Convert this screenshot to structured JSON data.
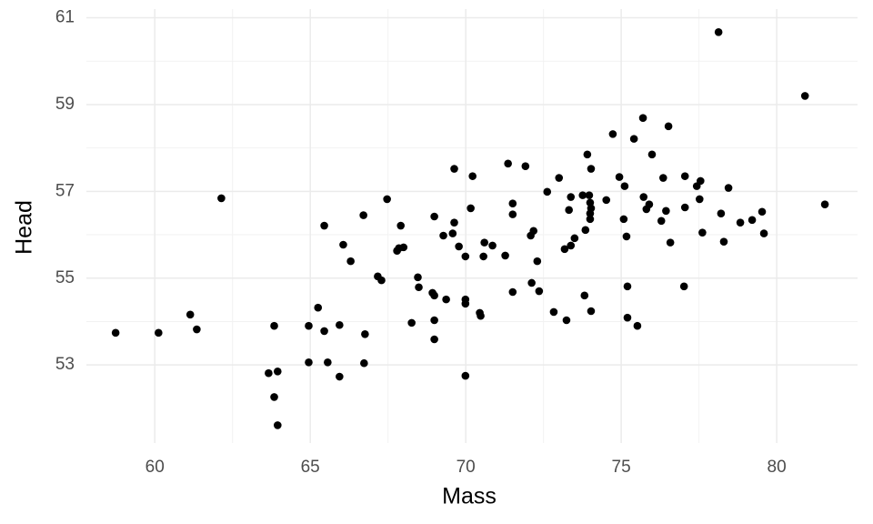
{
  "chart_data": {
    "type": "scatter",
    "x_label": "Mass",
    "y_label": "Head",
    "xlim": [
      57.8,
      82.6
    ],
    "ylim": [
      51.2,
      61.2
    ],
    "xticks": [
      60,
      65,
      70,
      75,
      80
    ],
    "yticks": [
      53,
      55,
      57,
      59,
      61
    ],
    "grid": true,
    "color": "#000000",
    "series": [
      {
        "name": "Head",
        "x": [
          58.74,
          60.12,
          61.14,
          61.35,
          62.14,
          63.66,
          63.84,
          63.84,
          63.95,
          63.95,
          64.95,
          64.95,
          65.25,
          65.45,
          65.45,
          65.56,
          65.94,
          65.94,
          66.06,
          66.3,
          66.71,
          66.76,
          66.73,
          67.17,
          67.29,
          67.47,
          67.79,
          67.85,
          67.91,
          68.0,
          68.26,
          68.46,
          68.49,
          68.93,
          68.99,
          68.99,
          68.99,
          68.99,
          69.28,
          69.37,
          69.58,
          69.63,
          69.63,
          69.78,
          69.99,
          69.99,
          69.99,
          69.99,
          70.16,
          70.22,
          70.45,
          70.48,
          70.57,
          70.6,
          70.86,
          71.27,
          71.36,
          71.51,
          71.51,
          71.51,
          71.92,
          72.09,
          72.12,
          72.18,
          72.3,
          72.36,
          72.62,
          72.83,
          73.0,
          73.18,
          73.24,
          73.32,
          73.38,
          73.38,
          73.5,
          73.76,
          73.82,
          73.85,
          73.91,
          73.97,
          74.0,
          74.0,
          74.0,
          74.03,
          74.03,
          74.03,
          74.52,
          74.73,
          74.94,
          75.08,
          75.11,
          75.17,
          75.2,
          75.2,
          75.41,
          75.52,
          75.7,
          75.72,
          75.81,
          75.9,
          75.99,
          76.29,
          76.35,
          76.44,
          76.52,
          76.58,
          77.02,
          77.05,
          77.05,
          77.43,
          77.52,
          77.55,
          77.61,
          78.13,
          78.21,
          78.3,
          78.45,
          78.83,
          79.21,
          79.53,
          79.59,
          80.91,
          81.55
        ],
        "values": [
          53.74,
          53.74,
          54.16,
          53.82,
          56.84,
          52.81,
          53.9,
          52.26,
          52.85,
          51.61,
          53.9,
          53.06,
          54.32,
          56.21,
          53.78,
          53.06,
          53.92,
          52.73,
          55.77,
          55.39,
          56.45,
          53.71,
          53.04,
          55.04,
          54.95,
          56.82,
          55.63,
          55.69,
          56.21,
          55.71,
          53.97,
          55.02,
          54.79,
          54.66,
          54.6,
          56.42,
          54.03,
          53.59,
          55.98,
          54.51,
          56.03,
          56.28,
          57.52,
          55.73,
          54.51,
          54.41,
          55.5,
          52.75,
          56.61,
          57.35,
          54.2,
          54.13,
          55.5,
          55.82,
          55.75,
          55.52,
          57.64,
          56.47,
          56.72,
          54.68,
          57.58,
          55.98,
          54.89,
          56.09,
          55.39,
          54.7,
          56.99,
          54.22,
          57.31,
          55.67,
          54.03,
          56.57,
          56.87,
          55.75,
          55.92,
          56.91,
          54.6,
          56.11,
          57.85,
          56.91,
          56.74,
          56.36,
          56.49,
          57.52,
          56.61,
          54.24,
          56.8,
          58.32,
          57.33,
          56.36,
          57.12,
          55.96,
          54.81,
          54.09,
          58.21,
          53.9,
          58.69,
          56.87,
          56.59,
          56.7,
          57.85,
          56.32,
          57.31,
          56.55,
          58.5,
          55.82,
          54.81,
          56.63,
          57.35,
          57.12,
          56.82,
          57.24,
          56.05,
          60.67,
          56.49,
          55.84,
          57.08,
          56.28,
          56.34,
          56.53,
          56.03,
          59.2,
          56.7
        ]
      }
    ]
  }
}
